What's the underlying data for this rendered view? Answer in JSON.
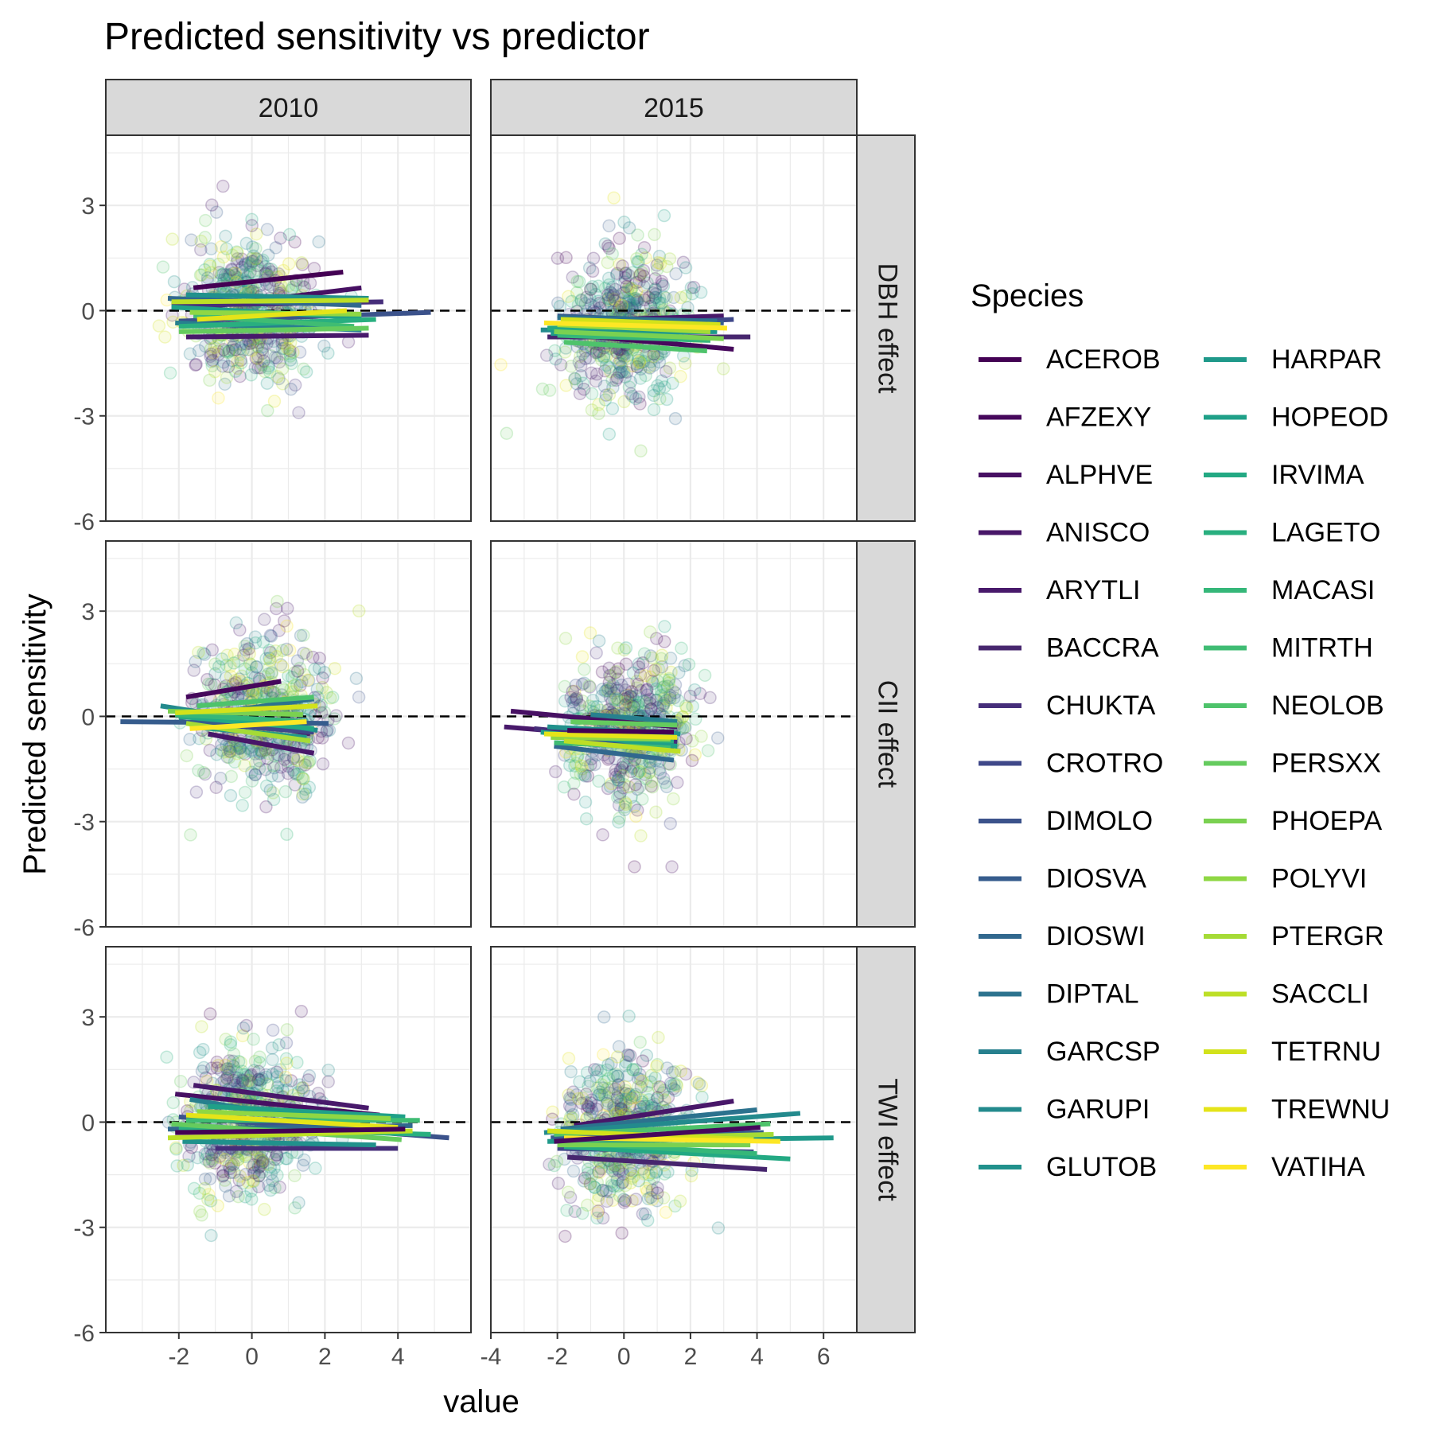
{
  "chart_data": {
    "type": "scatter",
    "title": "Predicted sensitivity vs predictor",
    "xlabel": "value",
    "ylabel": "Predicted sensitivity",
    "column_facets": [
      "2010",
      "2015"
    ],
    "row_facets": [
      "DBH effect",
      "CII effect",
      "TWI effect"
    ],
    "xlim_panels": {
      "2010": [
        -4,
        6
      ],
      "2015": [
        -4,
        7
      ]
    },
    "x_ticks_panels": {
      "2010": [
        -2,
        0,
        2,
        4
      ],
      "2015": [
        -4,
        -2,
        0,
        2,
        4,
        6
      ]
    },
    "ylim": [
      -6,
      5
    ],
    "y_ticks": [
      -6,
      -3,
      0,
      3
    ],
    "reference_line": {
      "y": 0,
      "style": "dashed"
    },
    "grid": true,
    "legend": {
      "title": "Species",
      "position": "right",
      "columns": 2
    },
    "species": [
      "ACEROB",
      "AFZEXY",
      "ALPHVE",
      "ANISCO",
      "ARYTLI",
      "BACCRA",
      "CHUKTA",
      "CROTRO",
      "DIMOLO",
      "DIOSVA",
      "DIOSWI",
      "DIPTAL",
      "GARCSP",
      "GARUPI",
      "GLUTOB",
      "HARPAR",
      "HOPEOD",
      "IRVIMA",
      "LAGETO",
      "MACASI",
      "MITRTH",
      "NEOLOB",
      "PERSXX",
      "PHOEPA",
      "POLYVI",
      "PTERGR",
      "SACCLI",
      "TETRNU",
      "TREWNU",
      "VATIHA"
    ],
    "colors": [
      "#440154",
      "#46085c",
      "#471063",
      "#481769",
      "#48196b",
      "#47266e",
      "#462e7a",
      "#3f4889",
      "#3b528b",
      "#365c8d",
      "#31688e",
      "#2c728e",
      "#27808e",
      "#238a8d",
      "#21918c",
      "#1f998a",
      "#1fa088",
      "#23a983",
      "#29af7f",
      "#35b779",
      "#3fbc73",
      "#4ec36b",
      "#65cb5e",
      "#7ad151",
      "#8fd744",
      "#a5db36",
      "#bddf26",
      "#d2e21b",
      "#e5e419",
      "#fde725"
    ],
    "panels": {
      "DBH|2010": [
        [
          -1.6,
          0.65,
          2.5,
          1.1
        ],
        [
          -1.3,
          0.1,
          3.0,
          0.65
        ],
        [
          -1.8,
          -0.75,
          3.2,
          -0.7
        ],
        [
          -2.2,
          0.15,
          3.6,
          0.25
        ],
        [
          -2.0,
          -0.3,
          4.9,
          -0.05
        ],
        [
          -2.3,
          0.35,
          3.0,
          0.15
        ],
        [
          -2.1,
          -0.35,
          3.0,
          -0.55
        ],
        [
          -1.8,
          0.45,
          3.2,
          0.35
        ],
        [
          -2.2,
          0.1,
          3.0,
          -0.2
        ],
        [
          -2.0,
          -0.45,
          3.4,
          -0.25
        ],
        [
          -1.6,
          -0.15,
          2.8,
          -0.45
        ],
        [
          -2.0,
          -0.6,
          3.2,
          -0.5
        ],
        [
          -1.7,
          -0.05,
          3.0,
          -0.1
        ],
        [
          -2.2,
          0.25,
          3.2,
          0.3
        ],
        [
          -1.5,
          -0.25,
          2.6,
          0.0
        ]
      ],
      "DBH|2015": [
        [
          -2.0,
          -0.65,
          3.3,
          -1.1
        ],
        [
          -1.8,
          -0.3,
          3.0,
          -0.15
        ],
        [
          -2.3,
          -0.75,
          3.8,
          -0.75
        ],
        [
          -1.9,
          -0.45,
          3.3,
          -0.25
        ],
        [
          -2.0,
          -0.15,
          3.0,
          -0.35
        ],
        [
          -2.0,
          -0.2,
          2.8,
          -0.3
        ],
        [
          -2.5,
          -0.55,
          2.8,
          -0.55
        ],
        [
          -2.2,
          -0.65,
          2.8,
          -0.6
        ],
        [
          -2.3,
          -0.5,
          2.8,
          -0.45
        ],
        [
          -2.0,
          -0.7,
          2.6,
          -0.85
        ],
        [
          -1.8,
          -0.9,
          2.5,
          -1.15
        ],
        [
          -2.1,
          -0.6,
          3.0,
          -0.8
        ],
        [
          -2.0,
          -0.4,
          2.6,
          -0.6
        ],
        [
          -1.9,
          -0.25,
          2.9,
          -0.4
        ],
        [
          -2.4,
          -0.35,
          3.1,
          -0.5
        ]
      ],
      "CII|2010": [
        [
          -1.8,
          0.55,
          0.8,
          1.0
        ],
        [
          -1.2,
          -0.5,
          1.7,
          -1.05
        ],
        [
          -2.2,
          0.2,
          1.6,
          -0.5
        ],
        [
          -1.3,
          -0.2,
          1.7,
          -0.45
        ],
        [
          -3.6,
          -0.15,
          2.1,
          -0.2
        ],
        [
          -2.0,
          -0.05,
          1.7,
          0.5
        ],
        [
          -2.5,
          0.3,
          1.8,
          -0.4
        ],
        [
          -1.6,
          -0.3,
          1.5,
          -0.6
        ],
        [
          -2.0,
          0.0,
          1.7,
          -0.35
        ],
        [
          -2.1,
          0.05,
          1.5,
          -0.15
        ],
        [
          -1.5,
          0.3,
          1.7,
          0.55
        ],
        [
          -2.3,
          0.15,
          1.4,
          0.05
        ],
        [
          -1.8,
          -0.2,
          1.6,
          -0.7
        ],
        [
          -2.1,
          0.1,
          1.8,
          0.3
        ],
        [
          -1.7,
          -0.35,
          1.5,
          -0.15
        ]
      ],
      "CII|2015": [
        [
          -3.4,
          0.15,
          1.6,
          -0.3
        ],
        [
          -3.6,
          -0.3,
          1.6,
          -0.7
        ],
        [
          -2.7,
          -0.35,
          1.6,
          -0.75
        ],
        [
          -1.9,
          -0.6,
          1.5,
          -0.95
        ],
        [
          -2.1,
          -0.85,
          1.5,
          -1.25
        ],
        [
          -1.0,
          0.05,
          1.6,
          -0.15
        ],
        [
          -2.3,
          -0.3,
          1.7,
          -0.5
        ],
        [
          -2.5,
          -0.45,
          1.6,
          -0.85
        ],
        [
          -2.0,
          -0.55,
          1.5,
          -0.7
        ],
        [
          -2.1,
          -0.75,
          1.4,
          -0.9
        ],
        [
          -1.6,
          -0.15,
          1.6,
          -0.25
        ],
        [
          -2.2,
          -0.6,
          1.4,
          -0.65
        ],
        [
          -1.8,
          -0.7,
          1.7,
          -1.0
        ],
        [
          -2.4,
          -0.5,
          1.6,
          -0.6
        ],
        [
          -1.7,
          -0.4,
          1.5,
          -0.45
        ]
      ],
      "TWI|2010": [
        [
          -2.1,
          0.8,
          3.5,
          0.2
        ],
        [
          -1.6,
          1.05,
          3.2,
          0.4
        ],
        [
          -1.0,
          -0.75,
          4.0,
          -0.75
        ],
        [
          -2.0,
          0.15,
          5.4,
          -0.45
        ],
        [
          -2.3,
          -0.2,
          4.4,
          -0.1
        ],
        [
          -1.7,
          0.65,
          2.0,
          0.0
        ],
        [
          -1.9,
          -0.55,
          3.4,
          -0.65
        ],
        [
          -1.2,
          0.45,
          4.2,
          0.15
        ],
        [
          -2.0,
          -0.15,
          4.9,
          -0.35
        ],
        [
          -1.8,
          0.05,
          4.6,
          0.05
        ],
        [
          -2.2,
          -0.05,
          4.1,
          -0.5
        ],
        [
          -1.5,
          0.3,
          3.8,
          0.1
        ],
        [
          -2.3,
          -0.45,
          4.4,
          -0.25
        ],
        [
          -1.8,
          0.2,
          4.0,
          -0.15
        ],
        [
          -2.1,
          -0.3,
          4.2,
          -0.2
        ]
      ],
      "TWI|2015": [
        [
          -1.5,
          -0.1,
          3.3,
          0.6
        ],
        [
          -1.7,
          -1.0,
          4.3,
          -1.35
        ],
        [
          -2.0,
          -0.75,
          3.9,
          -0.85
        ],
        [
          -2.2,
          -0.45,
          4.2,
          -0.3
        ],
        [
          -1.9,
          -0.2,
          4.0,
          0.35
        ],
        [
          -2.4,
          -0.3,
          5.3,
          0.25
        ],
        [
          -2.3,
          -0.55,
          6.3,
          -0.45
        ],
        [
          -1.8,
          -0.7,
          5.0,
          -1.05
        ],
        [
          -1.6,
          -0.6,
          4.0,
          -0.9
        ],
        [
          -2.1,
          -0.35,
          4.4,
          -0.05
        ],
        [
          -2.0,
          -0.65,
          3.8,
          -0.65
        ],
        [
          -1.7,
          -0.5,
          4.5,
          -0.35
        ],
        [
          -2.3,
          -0.25,
          3.9,
          -0.5
        ],
        [
          -1.8,
          -0.45,
          4.7,
          -0.55
        ],
        [
          -2.1,
          -0.55,
          4.1,
          -0.15
        ]
      ]
    }
  }
}
